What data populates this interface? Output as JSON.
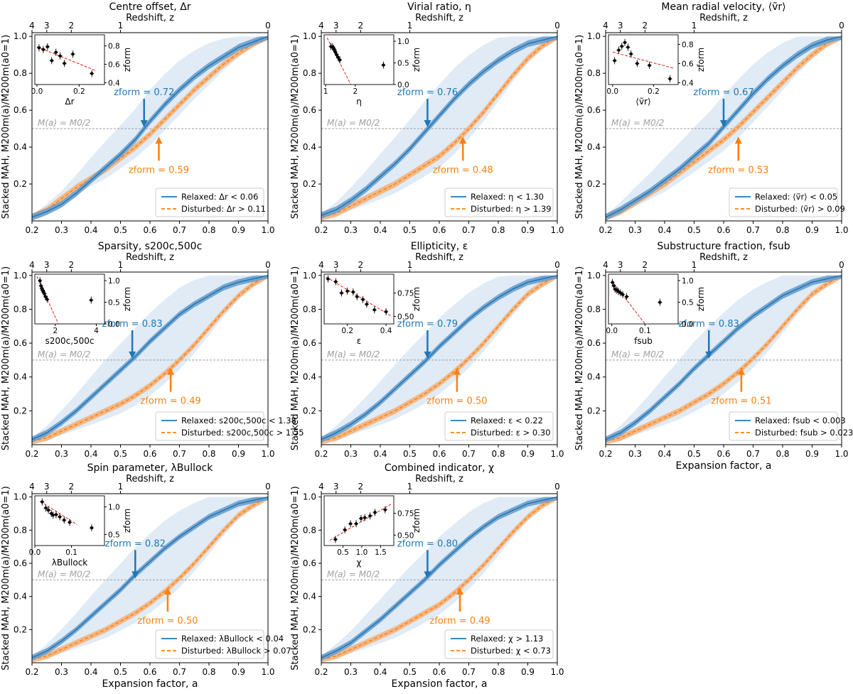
{
  "figure": {
    "colors": {
      "relaxed": "#1f77b4",
      "relaxed_band": "#6b9fcd",
      "relaxed_scatter": "#dbe8f4",
      "disturbed": "#ff7f0e",
      "disturbed_band": "#f4b37a",
      "half_line": "#9e9e9e",
      "fit_line": "#e3241b",
      "points": "#000000"
    },
    "shared_axes": {
      "xlabel": "Expansion factor, a",
      "ylabel": "Stacked MAH, M200m(a)/M200m(a0=1)",
      "xlim": [
        0.2,
        1.0
      ],
      "ylim": [
        0.0,
        1.02
      ],
      "xticks": [
        "0.2",
        "0.3",
        "0.4",
        "0.5",
        "0.6",
        "0.7",
        "0.8",
        "0.9",
        "1.0"
      ],
      "yticks": [
        "0.2",
        "0.4",
        "0.6",
        "0.8",
        "1.0"
      ],
      "top_xlabel": "Redshift, z",
      "top_xticks": [
        "4",
        "3",
        "2",
        "1",
        "0"
      ],
      "half_mass_label": "M(a) = M0/2",
      "inset_ylabel": "zform"
    }
  },
  "chart_data": [
    {
      "type": "line",
      "title": "Centre offset, Δr",
      "zform_relaxed": "zform = 0.72",
      "zform_disturbed": "zform = 0.59",
      "legend": [
        "Relaxed: Δr < 0.06",
        "Disturbed: Δr > 0.11"
      ],
      "x": [
        0.2,
        0.25,
        0.3,
        0.35,
        0.4,
        0.45,
        0.5,
        0.55,
        0.6,
        0.65,
        0.7,
        0.75,
        0.8,
        0.85,
        0.9,
        0.95,
        1.0
      ],
      "series": [
        {
          "name": "Relaxed",
          "values": [
            0.02,
            0.05,
            0.09,
            0.15,
            0.22,
            0.29,
            0.36,
            0.44,
            0.54,
            0.63,
            0.71,
            0.78,
            0.84,
            0.89,
            0.94,
            0.97,
            1.0
          ]
        },
        {
          "name": "Disturbed",
          "values": [
            0.02,
            0.06,
            0.12,
            0.18,
            0.23,
            0.28,
            0.34,
            0.4,
            0.47,
            0.55,
            0.63,
            0.71,
            0.78,
            0.85,
            0.91,
            0.96,
            1.0
          ]
        }
      ],
      "half_mass_a": {
        "relaxed": 0.58,
        "disturbed": 0.63
      },
      "inset": {
        "xlabel": "Δr",
        "xlim": [
          -0.01,
          0.32
        ],
        "ylim": [
          0.38,
          0.92
        ],
        "xticks": [
          "0.0",
          "0.2"
        ],
        "yticks": [
          "0.4",
          "0.6",
          "0.8"
        ],
        "x": [
          0.01,
          0.03,
          0.05,
          0.07,
          0.09,
          0.11,
          0.13,
          0.17,
          0.26
        ],
        "y": [
          0.78,
          0.76,
          0.79,
          0.64,
          0.73,
          0.69,
          0.61,
          0.71,
          0.5
        ],
        "fit": [
          [
            0.0,
            0.79
          ],
          [
            0.28,
            0.53
          ]
        ]
      }
    },
    {
      "type": "line",
      "title": "Virial ratio, η",
      "zform_relaxed": "zform = 0.76",
      "zform_disturbed": "zform = 0.48",
      "legend": [
        "Relaxed: η < 1.30",
        "Disturbed: η > 1.39"
      ],
      "x": [
        0.2,
        0.25,
        0.3,
        0.35,
        0.4,
        0.45,
        0.5,
        0.55,
        0.6,
        0.65,
        0.7,
        0.75,
        0.8,
        0.85,
        0.9,
        0.95,
        1.0
      ],
      "series": [
        {
          "name": "Relaxed",
          "values": [
            0.03,
            0.06,
            0.11,
            0.17,
            0.24,
            0.31,
            0.39,
            0.48,
            0.57,
            0.66,
            0.74,
            0.81,
            0.87,
            0.92,
            0.96,
            0.98,
            1.0
          ]
        },
        {
          "name": "Disturbed",
          "values": [
            0.02,
            0.04,
            0.08,
            0.12,
            0.16,
            0.2,
            0.25,
            0.3,
            0.35,
            0.42,
            0.5,
            0.59,
            0.69,
            0.79,
            0.88,
            0.95,
            1.0
          ]
        }
      ],
      "half_mass_a": {
        "relaxed": 0.56,
        "disturbed": 0.68
      },
      "inset": {
        "xlabel": "η",
        "xlim": [
          0.95,
          3.3
        ],
        "ylim": [
          0.0,
          1.15
        ],
        "xticks": [
          "1",
          "2"
        ],
        "yticks": [
          "0.0",
          "0.5",
          "1.0"
        ],
        "x": [
          1.18,
          1.23,
          1.27,
          1.3,
          1.33,
          1.37,
          1.42,
          1.48,
          2.95
        ],
        "y": [
          0.88,
          0.87,
          0.84,
          0.8,
          0.75,
          0.69,
          0.63,
          0.57,
          0.45
        ],
        "fit": [
          [
            1.05,
            1.08
          ],
          [
            1.85,
            0.0
          ]
        ]
      }
    },
    {
      "type": "line",
      "title": "Mean radial velocity, ⟨ṽr⟩",
      "zform_relaxed": "zform = 0.67",
      "zform_disturbed": "zform = 0.53",
      "legend": [
        "Relaxed: ⟨ṽr⟩ < 0.05",
        "Disturbed: ⟨ṽr⟩ > 0.09"
      ],
      "x": [
        0.2,
        0.25,
        0.3,
        0.35,
        0.4,
        0.45,
        0.5,
        0.55,
        0.6,
        0.65,
        0.7,
        0.75,
        0.8,
        0.85,
        0.9,
        0.95,
        1.0
      ],
      "series": [
        {
          "name": "Relaxed",
          "values": [
            0.02,
            0.06,
            0.11,
            0.16,
            0.22,
            0.28,
            0.35,
            0.42,
            0.51,
            0.6,
            0.69,
            0.77,
            0.84,
            0.9,
            0.95,
            0.98,
            1.0
          ]
        },
        {
          "name": "Disturbed",
          "values": [
            0.02,
            0.05,
            0.1,
            0.15,
            0.2,
            0.26,
            0.32,
            0.38,
            0.44,
            0.51,
            0.59,
            0.67,
            0.75,
            0.83,
            0.9,
            0.96,
            1.0
          ]
        }
      ],
      "half_mass_a": {
        "relaxed": 0.6,
        "disturbed": 0.65
      },
      "inset": {
        "xlabel": "⟨ṽr⟩",
        "xlim": [
          -0.02,
          0.32
        ],
        "ylim": [
          0.38,
          0.9
        ],
        "xticks": [
          "0.0",
          "0.2"
        ],
        "yticks": [
          "0.4",
          "0.6",
          "0.8"
        ],
        "x": [
          0.01,
          0.03,
          0.045,
          0.06,
          0.075,
          0.09,
          0.12,
          0.18,
          0.28
        ],
        "y": [
          0.63,
          0.74,
          0.78,
          0.82,
          0.77,
          0.7,
          0.6,
          0.58,
          0.44
        ],
        "fit": [
          [
            0.0,
            0.72
          ],
          [
            0.3,
            0.55
          ]
        ]
      }
    },
    {
      "type": "line",
      "title": "Sparsity, s200c,500c",
      "zform_relaxed": "zform = 0.83",
      "zform_disturbed": "zform = 0.49",
      "legend": [
        "Relaxed: s200c,500c < 1.38",
        "Disturbed: s200c,500c > 1.55"
      ],
      "x": [
        0.2,
        0.25,
        0.3,
        0.35,
        0.4,
        0.45,
        0.5,
        0.55,
        0.6,
        0.65,
        0.7,
        0.75,
        0.8,
        0.85,
        0.9,
        0.95,
        1.0
      ],
      "series": [
        {
          "name": "Relaxed",
          "values": [
            0.03,
            0.07,
            0.13,
            0.2,
            0.28,
            0.36,
            0.44,
            0.52,
            0.61,
            0.69,
            0.77,
            0.83,
            0.88,
            0.93,
            0.96,
            0.98,
            1.0
          ]
        },
        {
          "name": "Disturbed",
          "values": [
            0.02,
            0.04,
            0.08,
            0.12,
            0.16,
            0.2,
            0.24,
            0.29,
            0.35,
            0.42,
            0.5,
            0.59,
            0.69,
            0.79,
            0.88,
            0.95,
            1.0
          ]
        }
      ],
      "half_mass_a": {
        "relaxed": 0.54,
        "disturbed": 0.67
      },
      "inset": {
        "xlabel": "s200c,500c",
        "xlim": [
          1.0,
          4.4
        ],
        "ylim": [
          0.0,
          1.15
        ],
        "xticks": [
          "2",
          "4"
        ],
        "yticks": [
          "0.0",
          "0.5",
          "1.0"
        ],
        "x": [
          1.25,
          1.3,
          1.34,
          1.38,
          1.42,
          1.47,
          1.52,
          1.6,
          3.75
        ],
        "y": [
          1.0,
          0.88,
          0.82,
          0.78,
          0.74,
          0.7,
          0.63,
          0.57,
          0.55
        ],
        "fit": [
          [
            1.1,
            1.1
          ],
          [
            2.15,
            0.0
          ]
        ]
      }
    },
    {
      "type": "line",
      "title": "Ellipticity, ε",
      "zform_relaxed": "zform = 0.79",
      "zform_disturbed": "zform = 0.50",
      "legend": [
        "Relaxed: ε < 0.22",
        "Disturbed: ε > 0.30"
      ],
      "x": [
        0.2,
        0.25,
        0.3,
        0.35,
        0.4,
        0.45,
        0.5,
        0.55,
        0.6,
        0.65,
        0.7,
        0.75,
        0.8,
        0.85,
        0.9,
        0.95,
        1.0
      ],
      "series": [
        {
          "name": "Relaxed",
          "values": [
            0.03,
            0.07,
            0.12,
            0.18,
            0.25,
            0.33,
            0.41,
            0.49,
            0.58,
            0.66,
            0.74,
            0.81,
            0.87,
            0.92,
            0.96,
            0.98,
            1.0
          ]
        },
        {
          "name": "Disturbed",
          "values": [
            0.02,
            0.04,
            0.08,
            0.12,
            0.16,
            0.2,
            0.25,
            0.3,
            0.36,
            0.43,
            0.51,
            0.6,
            0.7,
            0.8,
            0.89,
            0.95,
            1.0
          ]
        }
      ],
      "half_mass_a": {
        "relaxed": 0.56,
        "disturbed": 0.66
      },
      "inset": {
        "xlabel": "ε",
        "xlim": [
          0.08,
          0.44
        ],
        "ylim": [
          0.42,
          0.95
        ],
        "xticks": [
          "0.2",
          "0.4"
        ],
        "yticks": [
          "0.50",
          "0.75"
        ],
        "x": [
          0.1,
          0.14,
          0.17,
          0.2,
          0.23,
          0.25,
          0.28,
          0.3,
          0.34,
          0.4
        ],
        "y": [
          0.9,
          0.87,
          0.75,
          0.77,
          0.76,
          0.71,
          0.68,
          0.63,
          0.57,
          0.55
        ],
        "fit": [
          [
            0.09,
            0.92
          ],
          [
            0.43,
            0.5
          ]
        ]
      }
    },
    {
      "type": "line",
      "title": "Substructure fraction, fsub",
      "zform_relaxed": "zform = 0.83",
      "zform_disturbed": "zform = 0.51",
      "legend": [
        "Relaxed: fsub < 0.003",
        "Disturbed: fsub > 0.023"
      ],
      "x": [
        0.2,
        0.25,
        0.3,
        0.35,
        0.4,
        0.45,
        0.5,
        0.55,
        0.6,
        0.65,
        0.7,
        0.75,
        0.8,
        0.85,
        0.9,
        0.95,
        1.0
      ],
      "series": [
        {
          "name": "Relaxed",
          "values": [
            0.03,
            0.07,
            0.13,
            0.2,
            0.28,
            0.36,
            0.45,
            0.53,
            0.61,
            0.69,
            0.76,
            0.82,
            0.88,
            0.92,
            0.96,
            0.98,
            1.0
          ]
        },
        {
          "name": "Disturbed",
          "values": [
            0.02,
            0.04,
            0.08,
            0.12,
            0.16,
            0.2,
            0.25,
            0.3,
            0.36,
            0.43,
            0.51,
            0.6,
            0.7,
            0.8,
            0.89,
            0.95,
            1.0
          ]
        }
      ],
      "half_mass_a": {
        "relaxed": 0.55,
        "disturbed": 0.66
      },
      "inset": {
        "xlabel": "fsub",
        "xlim": [
          -0.01,
          0.2
        ],
        "ylim": [
          0.0,
          1.15
        ],
        "xticks": [
          "0.0",
          "0.1"
        ],
        "yticks": [
          "0.0",
          "0.5",
          "1.0"
        ],
        "x": [
          0.002,
          0.006,
          0.01,
          0.015,
          0.02,
          0.026,
          0.033,
          0.045,
          0.145
        ],
        "y": [
          0.96,
          0.88,
          0.8,
          0.78,
          0.75,
          0.72,
          0.68,
          0.63,
          0.5
        ],
        "fit": [
          [
            0.0,
            1.0
          ],
          [
            0.1,
            0.0
          ]
        ]
      }
    },
    {
      "type": "line",
      "title": "Spin parameter, λBullock",
      "zform_relaxed": "zform = 0.82",
      "zform_disturbed": "zform = 0.50",
      "legend": [
        "Relaxed: λBullock < 0.04",
        "Disturbed: λBullock > 0.07"
      ],
      "x": [
        0.2,
        0.25,
        0.3,
        0.35,
        0.4,
        0.45,
        0.5,
        0.55,
        0.6,
        0.65,
        0.7,
        0.75,
        0.8,
        0.85,
        0.9,
        0.95,
        1.0
      ],
      "series": [
        {
          "name": "Relaxed",
          "values": [
            0.03,
            0.07,
            0.13,
            0.2,
            0.28,
            0.36,
            0.44,
            0.53,
            0.61,
            0.69,
            0.76,
            0.82,
            0.88,
            0.92,
            0.96,
            0.98,
            1.0
          ]
        },
        {
          "name": "Disturbed",
          "values": [
            0.02,
            0.04,
            0.08,
            0.12,
            0.16,
            0.2,
            0.25,
            0.3,
            0.36,
            0.43,
            0.51,
            0.6,
            0.7,
            0.8,
            0.89,
            0.95,
            1.0
          ]
        }
      ],
      "half_mass_a": {
        "relaxed": 0.55,
        "disturbed": 0.66
      },
      "inset": {
        "xlabel": "λBullock",
        "xlim": [
          0.0,
          0.19
        ],
        "ylim": [
          0.3,
          1.2
        ],
        "xticks": [
          "0.0",
          "0.1"
        ],
        "yticks": [
          "0.5",
          "1.0"
        ],
        "x": [
          0.02,
          0.03,
          0.037,
          0.045,
          0.05,
          0.058,
          0.068,
          0.08,
          0.095,
          0.155
        ],
        "y": [
          1.09,
          0.98,
          0.94,
          0.88,
          0.85,
          0.86,
          0.82,
          0.76,
          0.72,
          0.62
        ],
        "fit": [
          [
            0.015,
            1.1
          ],
          [
            0.115,
            0.68
          ]
        ]
      }
    },
    {
      "type": "line",
      "title": "Combined indicator, χ",
      "zform_relaxed": "zform = 0.80",
      "zform_disturbed": "zform = 0.49",
      "legend": [
        "Relaxed: χ > 1.13",
        "Disturbed: χ < 0.73"
      ],
      "x": [
        0.2,
        0.25,
        0.3,
        0.35,
        0.4,
        0.45,
        0.5,
        0.55,
        0.6,
        0.65,
        0.7,
        0.75,
        0.8,
        0.85,
        0.9,
        0.95,
        1.0
      ],
      "series": [
        {
          "name": "Relaxed",
          "values": [
            0.03,
            0.07,
            0.12,
            0.19,
            0.26,
            0.34,
            0.42,
            0.5,
            0.59,
            0.67,
            0.75,
            0.82,
            0.88,
            0.92,
            0.96,
            0.98,
            1.0
          ]
        },
        {
          "name": "Disturbed",
          "values": [
            0.02,
            0.04,
            0.08,
            0.12,
            0.16,
            0.2,
            0.25,
            0.3,
            0.35,
            0.42,
            0.5,
            0.59,
            0.69,
            0.79,
            0.88,
            0.95,
            1.0
          ]
        }
      ],
      "half_mass_a": {
        "relaxed": 0.56,
        "disturbed": 0.67
      },
      "inset": {
        "xlabel": "χ",
        "xlim": [
          0.0,
          1.85
        ],
        "ylim": [
          0.38,
          0.95
        ],
        "xticks": [
          "0.5",
          "1.0",
          "1.5"
        ],
        "yticks": [
          "0.50",
          "0.75"
        ],
        "x": [
          0.3,
          0.55,
          0.7,
          0.85,
          0.98,
          1.08,
          1.22,
          1.35,
          1.62
        ],
        "y": [
          0.45,
          0.56,
          0.63,
          0.63,
          0.69,
          0.7,
          0.72,
          0.76,
          0.79
        ],
        "fit": [
          [
            0.15,
            0.44
          ],
          [
            1.8,
            0.86
          ]
        ]
      }
    }
  ]
}
